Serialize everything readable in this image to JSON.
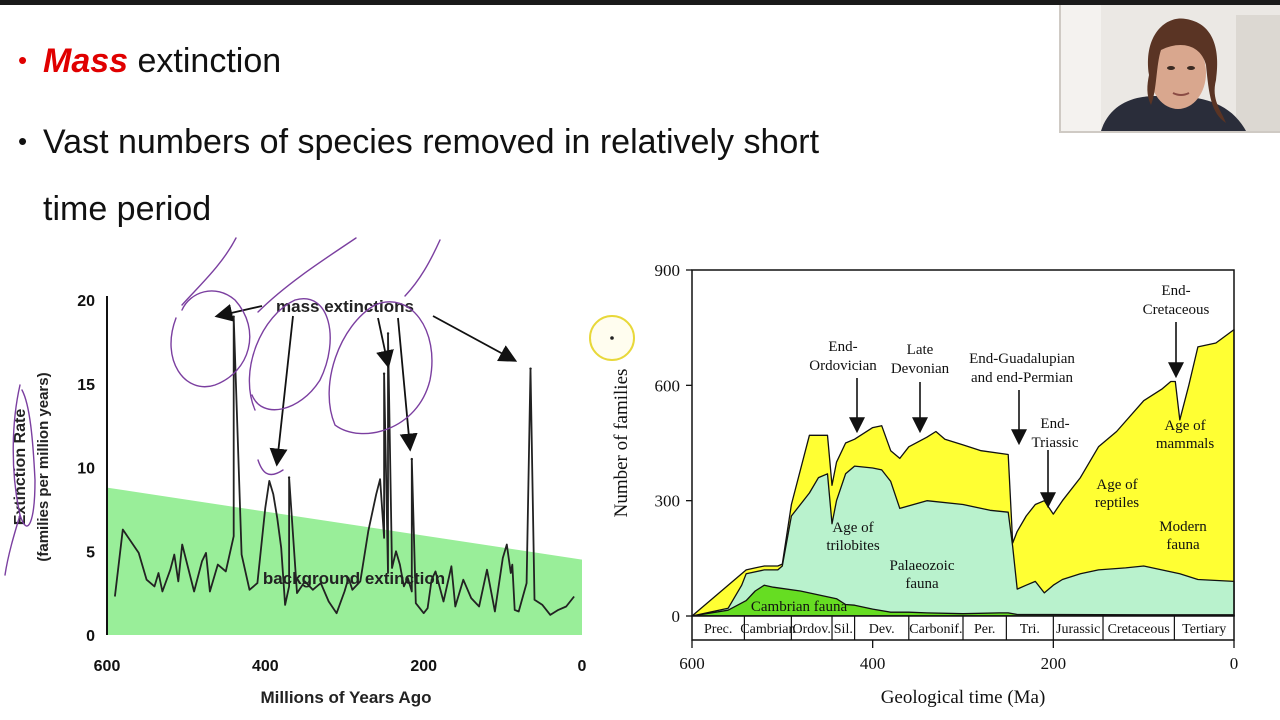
{
  "slide": {
    "bullets": [
      {
        "prefix": "",
        "highlight": "Mass",
        "rest": " extinction",
        "color": "#e00000"
      },
      {
        "line1": "Vast numbers of species removed in relatively short",
        "line2": "time period"
      }
    ]
  },
  "webcam": {
    "icon": "presenter-webcam"
  },
  "chart_data": [
    {
      "type": "line",
      "title": "",
      "xlabel": "Millions of Years Ago",
      "ylabel": "Extinction Rate",
      "ylabel2": "(families per million years)",
      "xlim": [
        600,
        0
      ],
      "ylim": [
        0,
        20
      ],
      "xticks": [
        "600",
        "400",
        "200",
        "0"
      ],
      "yticks": [
        "0",
        "5",
        "10",
        "15",
        "20"
      ],
      "series": [
        {
          "name": "extinction rate",
          "x": [
            590,
            580,
            560,
            550,
            540,
            535,
            530,
            520,
            515,
            510,
            505,
            490,
            480,
            475,
            470,
            460,
            450,
            440,
            430,
            420,
            410,
            400,
            395,
            390,
            385,
            380,
            375,
            370,
            360,
            350,
            340,
            330,
            320,
            310,
            300,
            295,
            290,
            280,
            270,
            260,
            255,
            250,
            245,
            240,
            235,
            230,
            225,
            220,
            215,
            210,
            200,
            195,
            190,
            185,
            175,
            165,
            160,
            150,
            140,
            130,
            120,
            110,
            100,
            95,
            90,
            88,
            85,
            80,
            70,
            60,
            50,
            40,
            30,
            20,
            10
          ],
          "y": [
            2.3,
            6.3,
            4.9,
            3.3,
            2.9,
            3.7,
            2.6,
            3.9,
            4.8,
            3.2,
            5.4,
            2.6,
            4.4,
            4.9,
            2.6,
            4.2,
            3.8,
            5.9,
            4.8,
            2.7,
            3.1,
            7.6,
            9.2,
            8.4,
            7.0,
            5.2,
            1.8,
            2.9,
            2.5,
            3.2,
            2.7,
            3.1,
            2.0,
            1.3,
            2.6,
            3.4,
            2.7,
            3.2,
            6.2,
            8.4,
            9.3,
            5.8,
            3.7,
            4.0,
            5.0,
            4.2,
            2.9,
            3.4,
            2.6,
            1.9,
            1.3,
            1.6,
            3.3,
            3.8,
            2.0,
            4.1,
            1.7,
            3.3,
            2.2,
            1.7,
            3.9,
            1.4,
            4.6,
            5.4,
            3.7,
            4.2,
            1.5,
            1.4,
            3.1,
            2.1,
            1.8,
            1.2,
            1.5,
            1.7,
            2.3
          ]
        },
        {
          "name": "background extinction",
          "x": [
            600,
            0
          ],
          "y_top": [
            8.8,
            4.5
          ]
        }
      ],
      "peaks": [
        {
          "x": 440,
          "y": 19.0
        },
        {
          "x": 370,
          "y": 9.4
        },
        {
          "x": 250,
          "y": 15.6
        },
        {
          "x": 245,
          "y": 18.0
        },
        {
          "x": 215,
          "y": 10.5
        },
        {
          "x": 65,
          "y": 15.9
        }
      ],
      "annotations": {
        "mass": "mass extinctions",
        "background": "background extinction"
      },
      "colors": {
        "background_band": "#99ee99",
        "line": "#222222",
        "pen": "#7b3fa0"
      }
    },
    {
      "type": "area",
      "title": "",
      "xlabel": "Geological time (Ma)",
      "ylabel": "Number of families",
      "xlim": [
        600,
        0
      ],
      "ylim": [
        0,
        900
      ],
      "xticks": [
        "600",
        "400",
        "200",
        "0"
      ],
      "yticks": [
        "0",
        "300",
        "600",
        "900"
      ],
      "periods": [
        "Prec.",
        "Cambrian",
        "Ordov.",
        "Sil.",
        "Dev.",
        "Carbonif.",
        "Per.",
        "Tri.",
        "Jurassic",
        "Cretaceous",
        "Tertiary"
      ],
      "series": [
        {
          "name": "Cambrian fauna",
          "color": "#66dd22",
          "x": [
            600,
            560,
            540,
            530,
            520,
            510,
            480,
            460,
            440,
            430,
            420,
            400,
            380,
            360,
            340,
            300,
            260,
            250,
            240,
            200,
            100,
            0
          ],
          "y": [
            0,
            15,
            40,
            65,
            80,
            75,
            65,
            55,
            45,
            30,
            28,
            18,
            10,
            10,
            8,
            6,
            8,
            8,
            4,
            4,
            3,
            3
          ]
        },
        {
          "name": "Palaeozoic fauna",
          "color": "#b9f2cd",
          "x": [
            600,
            560,
            545,
            540,
            520,
            505,
            500,
            490,
            470,
            460,
            450,
            445,
            440,
            430,
            420,
            400,
            390,
            380,
            370,
            340,
            300,
            270,
            250,
            245,
            240,
            230,
            220,
            210,
            200,
            190,
            170,
            150,
            120,
            100,
            60,
            40,
            0
          ],
          "y": [
            0,
            20,
            80,
            110,
            120,
            120,
            130,
            260,
            320,
            360,
            370,
            240,
            300,
            370,
            390,
            385,
            380,
            350,
            280,
            300,
            290,
            275,
            270,
            180,
            70,
            80,
            90,
            60,
            80,
            95,
            110,
            120,
            125,
            130,
            110,
            95,
            90
          ]
        },
        {
          "name": "Modern fauna",
          "color": "#ffff33",
          "x": [
            600,
            540,
            530,
            520,
            505,
            500,
            490,
            470,
            460,
            450,
            445,
            440,
            430,
            420,
            400,
            390,
            380,
            370,
            360,
            340,
            330,
            320,
            300,
            280,
            250,
            245,
            240,
            230,
            220,
            210,
            200,
            190,
            170,
            150,
            130,
            100,
            80,
            70,
            65,
            60,
            50,
            40,
            20,
            0
          ],
          "y": [
            0,
            120,
            125,
            130,
            130,
            135,
            290,
            470,
            470,
            470,
            340,
            400,
            450,
            460,
            490,
            495,
            430,
            410,
            440,
            465,
            480,
            460,
            445,
            430,
            420,
            190,
            220,
            260,
            290,
            300,
            265,
            300,
            360,
            440,
            480,
            560,
            590,
            610,
            610,
            510,
            600,
            700,
            710,
            745
          ]
        }
      ],
      "labels": {
        "cambrian": "Cambrian fauna",
        "trilobites": [
          "Age of",
          "trilobites"
        ],
        "palaeozoic": [
          "Palaeozoic",
          "fauna"
        ],
        "reptiles": [
          "Age of",
          "reptiles"
        ],
        "modern": [
          "Modern",
          "fauna"
        ],
        "mammals": [
          "Age of",
          "mammals"
        ]
      },
      "events": [
        {
          "name": [
            "End-",
            "Ordovician"
          ],
          "x": 445
        },
        {
          "name": [
            "Late",
            "Devonian"
          ],
          "x": 370
        },
        {
          "name": [
            "End-Guadalupian",
            "and end-Permian"
          ],
          "x": 255
        },
        {
          "name": [
            "End-",
            "Triassic"
          ],
          "x": 200
        },
        {
          "name": [
            "End-",
            "Cretaceous"
          ],
          "x": 65
        }
      ]
    }
  ]
}
